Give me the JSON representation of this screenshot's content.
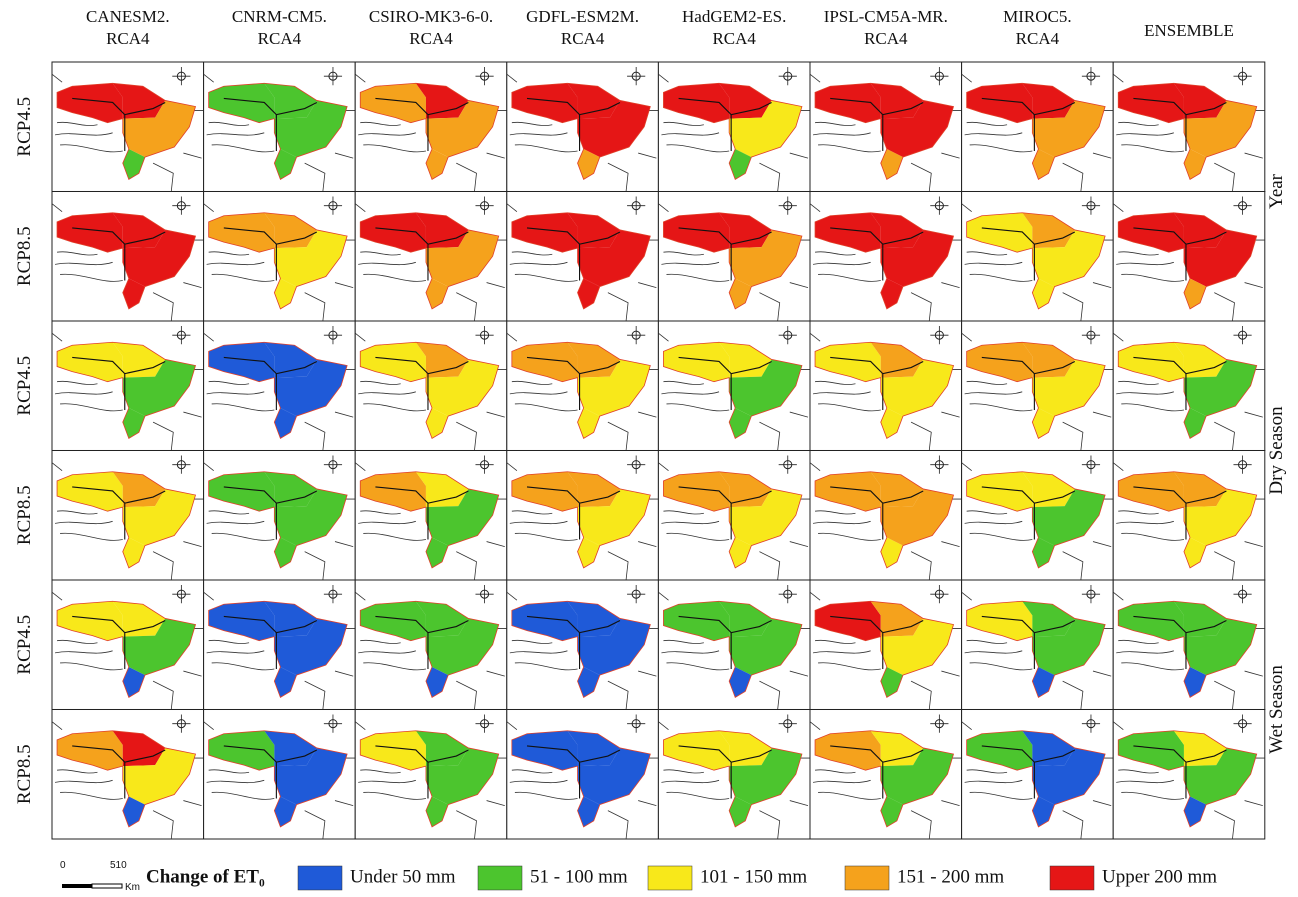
{
  "header": {
    "columns": [
      {
        "lines": [
          "CANESM2.",
          "RCA4"
        ]
      },
      {
        "lines": [
          "CNRM-CM5.",
          "RCA4"
        ]
      },
      {
        "lines": [
          "CSIRO-MK3-6-0.",
          "RCA4"
        ]
      },
      {
        "lines": [
          "GDFL-ESM2M.",
          "RCA4"
        ]
      },
      {
        "lines": [
          "HadGEM2-ES.",
          "RCA4"
        ]
      },
      {
        "lines": [
          "IPSL-CM5A-MR.",
          "RCA4"
        ]
      },
      {
        "lines": [
          "MIROC5.",
          "RCA4"
        ]
      },
      {
        "lines": [
          "ENSEMBLE"
        ]
      }
    ]
  },
  "rows": [
    {
      "label": "RCP4.5",
      "zones": [
        [
          4,
          4,
          3,
          1
        ],
        [
          1,
          1,
          1,
          1
        ],
        [
          3,
          4,
          3,
          3
        ],
        [
          4,
          4,
          4,
          3
        ],
        [
          4,
          4,
          2,
          1
        ],
        [
          4,
          4,
          4,
          3
        ],
        [
          4,
          4,
          3,
          3
        ],
        [
          4,
          4,
          3,
          3
        ]
      ]
    },
    {
      "label": "RCP8.5",
      "zones": [
        [
          4,
          4,
          4,
          4
        ],
        [
          3,
          3,
          2,
          2
        ],
        [
          4,
          4,
          3,
          3
        ],
        [
          4,
          4,
          4,
          4
        ],
        [
          4,
          4,
          3,
          3
        ],
        [
          4,
          4,
          4,
          4
        ],
        [
          2,
          3,
          2,
          2
        ],
        [
          4,
          4,
          4,
          3
        ]
      ]
    },
    {
      "label": "RCP4.5",
      "zones": [
        [
          2,
          2,
          1,
          1
        ],
        [
          0,
          0,
          0,
          0
        ],
        [
          2,
          3,
          2,
          2
        ],
        [
          3,
          3,
          2,
          2
        ],
        [
          2,
          2,
          1,
          1
        ],
        [
          2,
          3,
          2,
          2
        ],
        [
          3,
          3,
          2,
          2
        ],
        [
          2,
          2,
          1,
          1
        ]
      ]
    },
    {
      "label": "RCP8.5",
      "zones": [
        [
          2,
          3,
          2,
          2
        ],
        [
          1,
          1,
          1,
          1
        ],
        [
          3,
          2,
          1,
          1
        ],
        [
          3,
          3,
          2,
          2
        ],
        [
          3,
          3,
          2,
          2
        ],
        [
          3,
          3,
          3,
          2
        ],
        [
          2,
          2,
          1,
          1
        ],
        [
          3,
          3,
          2,
          2
        ]
      ]
    },
    {
      "label": "RCP4.5",
      "zones": [
        [
          2,
          2,
          1,
          0
        ],
        [
          0,
          0,
          0,
          0
        ],
        [
          1,
          1,
          1,
          0
        ],
        [
          0,
          0,
          0,
          0
        ],
        [
          1,
          1,
          1,
          0
        ],
        [
          4,
          3,
          2,
          1
        ],
        [
          2,
          1,
          1,
          0
        ],
        [
          1,
          1,
          1,
          0
        ]
      ]
    },
    {
      "label": "RCP8.5",
      "zones": [
        [
          3,
          4,
          2,
          0
        ],
        [
          1,
          0,
          0,
          0
        ],
        [
          2,
          1,
          1,
          1
        ],
        [
          0,
          0,
          0,
          0
        ],
        [
          2,
          2,
          1,
          1
        ],
        [
          3,
          2,
          1,
          1
        ],
        [
          1,
          0,
          0,
          0
        ],
        [
          1,
          2,
          1,
          0
        ]
      ]
    }
  ],
  "periods": [
    "Year",
    "Dry Season",
    "Wet Season"
  ],
  "legend": {
    "scale": [
      "0",
      "510",
      "Km"
    ],
    "title": "Change of ET₀",
    "classes": [
      {
        "label": "Under 50 mm",
        "color": "#1f5ad8"
      },
      {
        "label": "51 - 100 mm",
        "color": "#4cc52e"
      },
      {
        "label": "101 - 150 mm",
        "color": "#f8e81a"
      },
      {
        "label": "151 - 200 mm",
        "color": "#f5a21c"
      },
      {
        "label": "Upper 200 mm",
        "color": "#e51616"
      }
    ]
  }
}
